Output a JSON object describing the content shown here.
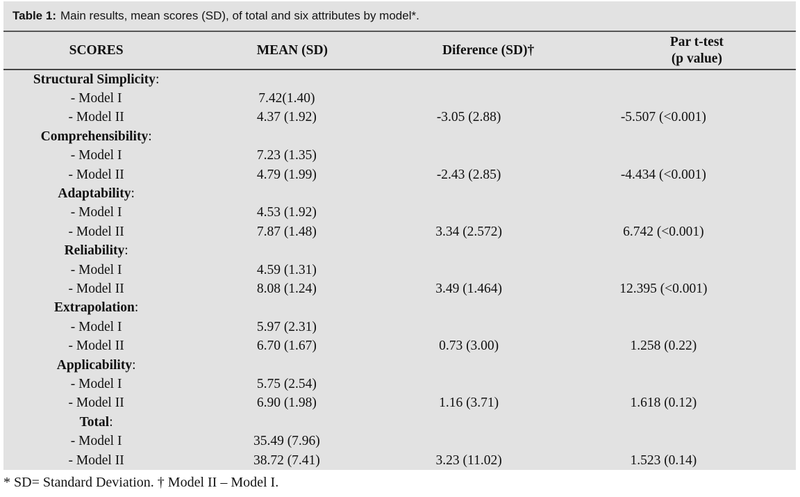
{
  "title": {
    "label": "Table 1:",
    "text": "Main results, mean scores (SD), of total and six attributes by model*."
  },
  "header": {
    "col1": "SCORES",
    "col2": "MEAN (SD)",
    "col3": "Diference (SD)†",
    "col4_line1": "Par t-test",
    "col4_line2": "(p value)"
  },
  "punct": {
    "colon": ":"
  },
  "colors": {
    "table_background": "#e2e2e2",
    "rule": "#4a4a4a",
    "text": "#141414",
    "page_background": "#ffffff"
  },
  "sections": [
    {
      "label": "Structural Simplicity",
      "rows": [
        {
          "name": "- Model I",
          "mean": "7.42(1.40)"
        },
        {
          "name": "- Model II",
          "mean": "4.37 (1.92)",
          "diff": "-3.05 (2.88)",
          "ttest": "-5.507 (<0.001)"
        }
      ]
    },
    {
      "label": "Comprehensibility",
      "rows": [
        {
          "name": "- Model I",
          "mean": "7.23 (1.35)"
        },
        {
          "name": "- Model II",
          "mean": "4.79 (1.99)",
          "diff": "-2.43 (2.85)",
          "ttest": "-4.434 (<0.001)"
        }
      ]
    },
    {
      "label": "Adaptability",
      "rows": [
        {
          "name": "- Model I",
          "mean": "4.53 (1.92)"
        },
        {
          "name": "- Model II",
          "mean": "7.87 (1.48)",
          "diff": "3.34 (2.572)",
          "ttest": "6.742 (<0.001)"
        }
      ]
    },
    {
      "label": "Reliability",
      "rows": [
        {
          "name": "- Model I",
          "mean": "4.59 (1.31)"
        },
        {
          "name": "- Model II",
          "mean": "8.08 (1.24)",
          "diff": "3.49 (1.464)",
          "ttest": "12.395 (<0.001)"
        }
      ]
    },
    {
      "label": "Extrapolation",
      "rows": [
        {
          "name": "- Model I",
          "mean": "5.97 (2.31)"
        },
        {
          "name": "- Model II",
          "mean": "6.70 (1.67)",
          "diff": "0.73 (3.00)",
          "ttest": "1.258 (0.22)"
        }
      ]
    },
    {
      "label": "Applicability",
      "rows": [
        {
          "name": "- Model I",
          "mean": "5.75 (2.54)"
        },
        {
          "name": "- Model II",
          "mean": "6.90 (1.98)",
          "diff": "1.16 (3.71)",
          "ttest": "1.618 (0.12)"
        }
      ]
    },
    {
      "label": "Total",
      "rows": [
        {
          "name": "- Model I",
          "mean": "35.49 (7.96)"
        },
        {
          "name": "- Model II",
          "mean": "38.72 (7.41)",
          "diff": "3.23 (11.02)",
          "ttest": "1.523 (0.14)"
        }
      ]
    }
  ],
  "footnote": "* SD= Standard Deviation. † Model II – Model I."
}
